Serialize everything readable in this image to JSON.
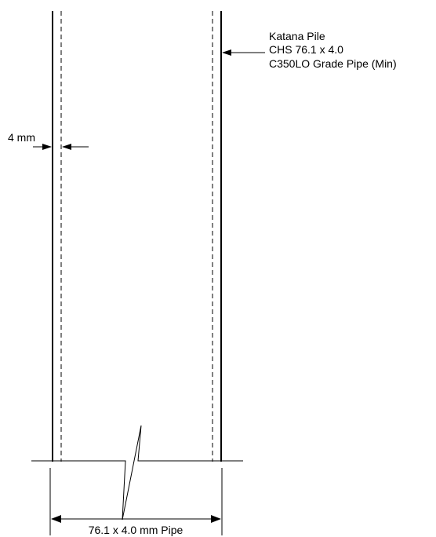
{
  "callout": {
    "line1": "Katana Pile",
    "line2": "CHS 76.1 x 4.0",
    "line3": "C350LO Grade Pipe (Min)"
  },
  "wall_dimension": {
    "label": "4 mm"
  },
  "width_dimension": {
    "label": "76.1 x 4.0 mm Pipe"
  },
  "colors": {
    "stroke": "#000000",
    "background": "#ffffff"
  }
}
